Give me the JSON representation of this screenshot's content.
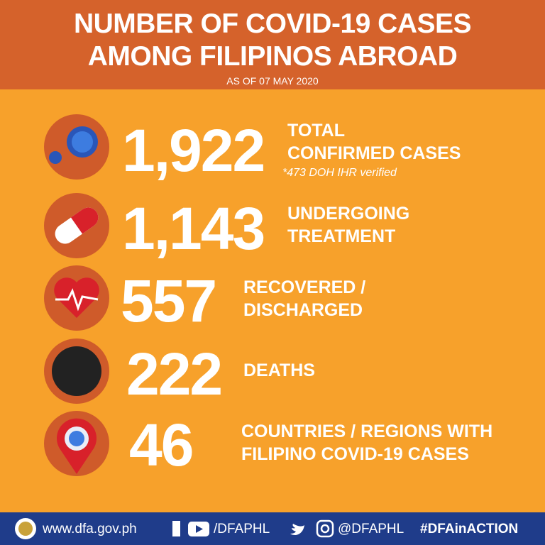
{
  "header": {
    "title": [
      "NUMBER OF COVID-19 CASES",
      "AMONG FILIPINOS ABROAD"
    ],
    "subtitle": "AS OF 07 MAY 2020"
  },
  "items": [
    {
      "value": "1,922",
      "label": [
        "TOTAL",
        "CONFIRMED CASES"
      ],
      "note": "*473 DOH IHR verified"
    },
    {
      "value": "1,143",
      "label": [
        "UNDERGOING",
        "TREATMENT"
      ]
    },
    {
      "value": "557",
      "label": [
        "RECOVERED /",
        "DISCHARGED"
      ]
    },
    {
      "value": "222",
      "label": [
        "DEATHS"
      ]
    },
    {
      "value": "46",
      "label": [
        "COUNTRIES / REGIONS WITH",
        "FILIPINO COVID-19 CASES"
      ]
    }
  ],
  "footer": {
    "website": "www.dfa.gov.ph",
    "facebook": "/DFAPHL",
    "twitter": "@DFAPHL",
    "hashtag": "#DFAinACTION"
  }
}
